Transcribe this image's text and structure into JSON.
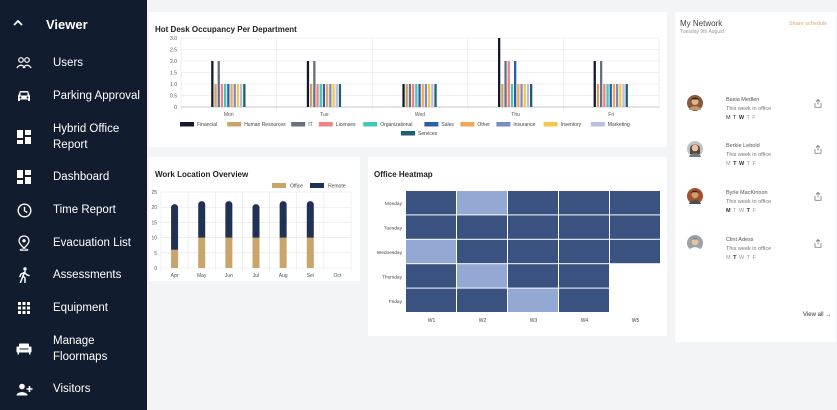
{
  "sidebar": {
    "title": "Viewer",
    "items": [
      {
        "label": "Users",
        "icon": "users-icon"
      },
      {
        "label": "Parking Approval",
        "icon": "car-icon"
      },
      {
        "label": "Hybrid Office Report",
        "icon": "dashboard-grid-icon"
      },
      {
        "label": "Dashboard",
        "icon": "dashboard-grid-icon"
      },
      {
        "label": "Time Report",
        "icon": "clock-icon"
      },
      {
        "label": "Evacuation List",
        "icon": "location-pin-icon"
      },
      {
        "label": "Assessments",
        "icon": "person-walking-icon"
      },
      {
        "label": "Equipment",
        "icon": "apps-grid-icon"
      },
      {
        "label": "Manage Floormaps",
        "icon": "sofa-icon"
      },
      {
        "label": "Visitors",
        "icon": "add-person-icon"
      }
    ]
  },
  "colors": {
    "sidebar_bg": "#111c2e",
    "heat_dark": "#3a5280",
    "heat_light": "#93a8d2",
    "office": "#c9a46b",
    "remote": "#1f3155",
    "accent_link": "#d9a96b"
  },
  "network": {
    "title": "My Network",
    "date": "Tuesday 9th August",
    "share_label": "Share schedule",
    "view_all": "View all",
    "people": [
      {
        "name": "Basia Medlen",
        "status": "This week in office",
        "days": [
          {
            "d": "M",
            "on": true
          },
          {
            "d": "T",
            "on": true
          },
          {
            "d": "W",
            "on": true
          },
          {
            "d": "T",
            "on": false
          },
          {
            "d": "F",
            "on": false
          }
        ]
      },
      {
        "name": "Berkie Lebold",
        "status": "This week in office",
        "days": [
          {
            "d": "M",
            "on": false
          },
          {
            "d": "T",
            "on": true
          },
          {
            "d": "W",
            "on": true
          },
          {
            "d": "T",
            "on": false
          },
          {
            "d": "F",
            "on": false
          }
        ]
      },
      {
        "name": "Byrle MacKinnon",
        "status": "This week in office",
        "days": [
          {
            "d": "M",
            "on": true
          },
          {
            "d": "T",
            "on": false
          },
          {
            "d": "W",
            "on": false
          },
          {
            "d": "T",
            "on": true
          },
          {
            "d": "F",
            "on": false
          }
        ]
      },
      {
        "name": "Clint Adess",
        "status": "This week in office",
        "days": [
          {
            "d": "M",
            "on": false
          },
          {
            "d": "T",
            "on": true
          },
          {
            "d": "W",
            "on": false
          },
          {
            "d": "T",
            "on": false
          },
          {
            "d": "F",
            "on": false
          }
        ]
      }
    ]
  },
  "chart_data": [
    {
      "type": "bar",
      "title": "Hot Desk Occupancy Per Department",
      "categories": [
        "Mon",
        "Tue",
        "Wed",
        "Thu",
        "Fri"
      ],
      "ylim": [
        0,
        3
      ],
      "yticks": [
        "3.0",
        "2.5",
        "2.0",
        "1.5",
        "1.0",
        "0.5",
        "0"
      ],
      "grid": true,
      "legend_position": "bottom",
      "series": [
        {
          "name": "Financial",
          "color": "#141a2e",
          "values": [
            2,
            2,
            1,
            3,
            2
          ]
        },
        {
          "name": "Human Resources",
          "color": "#c9a46b",
          "values": [
            1,
            1,
            1,
            1,
            1
          ]
        },
        {
          "name": "IT",
          "color": "#66707f",
          "values": [
            2,
            2,
            1,
            2,
            2
          ]
        },
        {
          "name": "Licenses",
          "color": "#ef8286",
          "values": [
            1,
            1,
            1,
            2,
            1
          ]
        },
        {
          "name": "Organizational",
          "color": "#45c7b9",
          "values": [
            1,
            1,
            1,
            1,
            1
          ]
        },
        {
          "name": "Sales",
          "color": "#2c5fa8",
          "values": [
            1,
            1,
            1,
            2,
            1
          ]
        },
        {
          "name": "Other",
          "color": "#f2a65a",
          "values": [
            1,
            1,
            1,
            1,
            1
          ]
        },
        {
          "name": "Insurance",
          "color": "#7a8dbf",
          "values": [
            1,
            1,
            1,
            1,
            1
          ]
        },
        {
          "name": "Inventory",
          "color": "#f2c94c",
          "values": [
            1,
            1,
            1,
            1,
            1
          ]
        },
        {
          "name": "Marketing",
          "color": "#b9bfe0",
          "values": [
            1,
            1,
            1,
            1,
            1
          ]
        },
        {
          "name": "Services",
          "color": "#1f5f6e",
          "values": [
            1,
            1,
            1,
            1,
            1
          ]
        }
      ]
    },
    {
      "type": "bar",
      "title": "Work Location Overview",
      "categories": [
        "Apr",
        "May",
        "Jun",
        "Jul",
        "Aug",
        "Sel",
        "Oct"
      ],
      "ylim": [
        0,
        25
      ],
      "yticks": [
        "25",
        "20",
        "15",
        "10",
        "5",
        "0"
      ],
      "grid": true,
      "legend_position": "top-right",
      "stacked": true,
      "series": [
        {
          "name": "Office",
          "color": "#c9a46b",
          "values": [
            6,
            10,
            10,
            10,
            10,
            10,
            0
          ]
        },
        {
          "name": "Remote",
          "color": "#1f3155",
          "values": [
            15,
            12,
            12,
            11,
            12,
            12,
            0
          ]
        }
      ]
    },
    {
      "type": "heatmap",
      "title": "Office Heatmap",
      "rows": [
        "Monday",
        "Tuesday",
        "Wednesday",
        "Thursday",
        "Friday"
      ],
      "columns": [
        "W1",
        "W2",
        "W3",
        "W4",
        "W5"
      ],
      "values": [
        [
          2,
          1,
          2,
          2,
          2
        ],
        [
          2,
          2,
          2,
          2,
          2
        ],
        [
          1,
          2,
          2,
          2,
          2
        ],
        [
          2,
          1,
          2,
          2,
          null
        ],
        [
          2,
          2,
          1,
          2,
          null
        ]
      ]
    }
  ]
}
